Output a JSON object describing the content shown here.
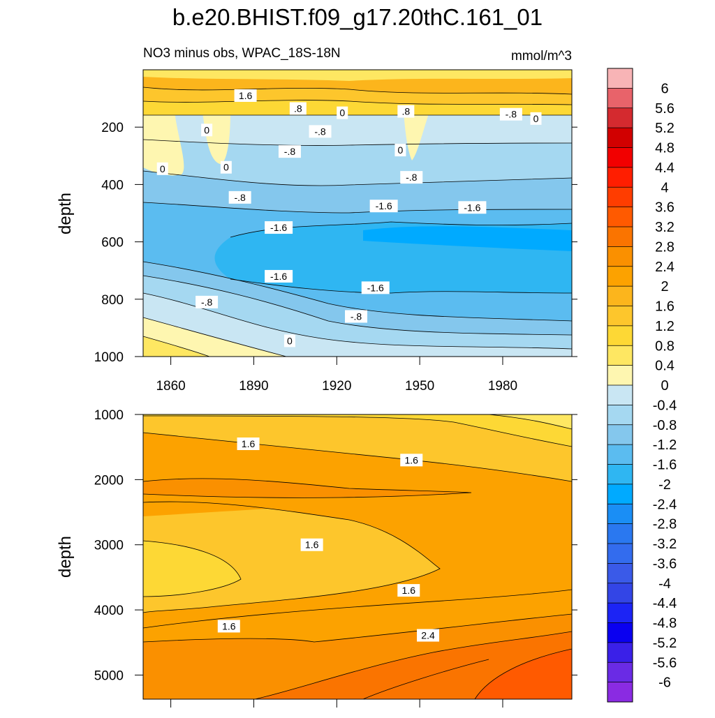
{
  "chart_data": {
    "type": "contour",
    "title": "b.e20.BHIST.f09_g17.20thC.161_01",
    "subtitle_left": "NO3 minus obs, WPAC_18S-18N",
    "subtitle_right": "mmol/m^3",
    "x_axis": {
      "range": [
        1850,
        2005
      ],
      "ticks": [
        1860,
        1890,
        1920,
        1950,
        1980
      ],
      "tick_labels": [
        "1860",
        "1890",
        "1920",
        "1950",
        "1980"
      ]
    },
    "panels": [
      {
        "name": "upper",
        "ylabel": "depth",
        "yrange": [
          0,
          1000
        ],
        "yticks": [
          200,
          400,
          600,
          800,
          1000
        ],
        "ytick_labels": [
          "200",
          "400",
          "600",
          "800",
          "1000"
        ],
        "contour_labels": [
          {
            "text": "1.6",
            "x": 1887,
            "y": 90
          },
          {
            "text": ".8",
            "x": 1906,
            "y": 135
          },
          {
            "text": "0",
            "x": 1922,
            "y": 150
          },
          {
            "text": ".8",
            "x": 1945,
            "y": 145
          },
          {
            "text": "-.8",
            "x": 1983,
            "y": 155
          },
          {
            "text": "0",
            "x": 1992,
            "y": 170
          },
          {
            "text": "0",
            "x": 1873,
            "y": 210
          },
          {
            "text": "-.8",
            "x": 1914,
            "y": 215
          },
          {
            "text": "-.8",
            "x": 1903,
            "y": 285
          },
          {
            "text": "0",
            "x": 1943,
            "y": 280
          },
          {
            "text": "0",
            "x": 1857,
            "y": 345
          },
          {
            "text": "0",
            "x": 1880,
            "y": 340
          },
          {
            "text": "-.8",
            "x": 1947,
            "y": 375
          },
          {
            "text": "-.8",
            "x": 1885,
            "y": 445
          },
          {
            "text": "-1.6",
            "x": 1937,
            "y": 475
          },
          {
            "text": "-1.6",
            "x": 1969,
            "y": 480
          },
          {
            "text": "-1.6",
            "x": 1899,
            "y": 550
          },
          {
            "text": "-1.6",
            "x": 1899,
            "y": 720
          },
          {
            "text": "-1.6",
            "x": 1934,
            "y": 760
          },
          {
            "text": "-.8",
            "x": 1873,
            "y": 810
          },
          {
            "text": "-.8",
            "x": 1927,
            "y": 860
          },
          {
            "text": "0",
            "x": 1903,
            "y": 945
          }
        ]
      },
      {
        "name": "lower",
        "ylabel": "depth",
        "yrange": [
          1000,
          5370
        ],
        "yticks": [
          1000,
          2000,
          3000,
          4000,
          5000
        ],
        "ytick_labels": [
          "1000",
          "2000",
          "3000",
          "4000",
          "5000"
        ],
        "contour_labels": [
          {
            "text": "1.6",
            "x": 1888,
            "y": 1450
          },
          {
            "text": "1.6",
            "x": 1947,
            "y": 1700
          },
          {
            "text": "1.6",
            "x": 1911,
            "y": 3000
          },
          {
            "text": "1.6",
            "x": 1946,
            "y": 3700
          },
          {
            "text": "1.6",
            "x": 1881,
            "y": 4250
          },
          {
            "text": "2.4",
            "x": 1953,
            "y": 4390
          }
        ]
      }
    ],
    "colorbar": {
      "labels": [
        "6",
        "5.6",
        "5.2",
        "4.8",
        "4.4",
        "4",
        "3.6",
        "3.2",
        "2.8",
        "2.4",
        "2",
        "1.6",
        "1.2",
        "0.8",
        "0.4",
        "0",
        "-0.4",
        "-0.8",
        "-1.2",
        "-1.6",
        "-2",
        "-2.4",
        "-2.8",
        "-3.2",
        "-3.6",
        "-4",
        "-4.4",
        "-4.8",
        "-5.2",
        "-5.6",
        "-6"
      ],
      "colors": [
        "#f8b4b6",
        "#e8636a",
        "#d42a2f",
        "#d10000",
        "#f20000",
        "#ff1e00",
        "#ff3d00",
        "#ff5a00",
        "#fa7400",
        "#fa9000",
        "#fca200",
        "#fcb51c",
        "#fdc62c",
        "#fdd835",
        "#fee762",
        "#fef6b0",
        "#c9e6f3",
        "#a5d8f1",
        "#84c7ed",
        "#5bbcf0",
        "#2fb6f2",
        "#00aaff",
        "#1a8ef5",
        "#2a78f0",
        "#336cee",
        "#3a5ae8",
        "#3345e6",
        "#1c24f5",
        "#0a00f0",
        "#3a20e8",
        "#6a2be5",
        "#8a2be2"
      ]
    }
  }
}
